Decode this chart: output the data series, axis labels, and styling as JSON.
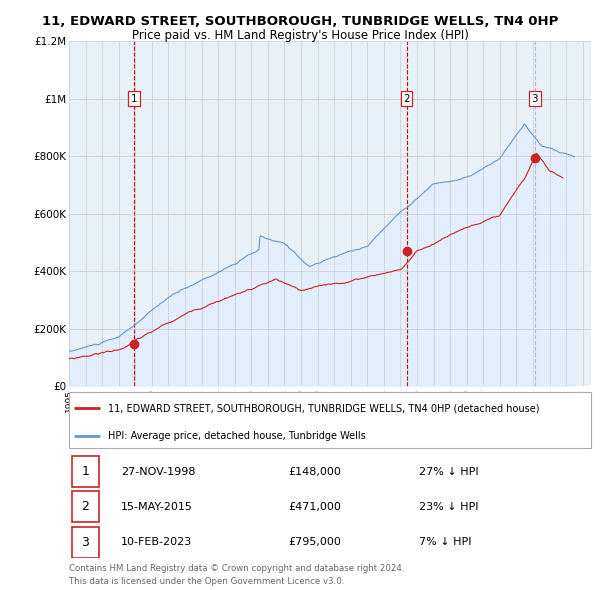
{
  "title": "11, EDWARD STREET, SOUTHBOROUGH, TUNBRIDGE WELLS, TN4 0HP",
  "subtitle": "Price paid vs. HM Land Registry's House Price Index (HPI)",
  "legend_label_red": "11, EDWARD STREET, SOUTHBOROUGH, TUNBRIDGE WELLS, TN4 0HP (detached house)",
  "legend_label_blue": "HPI: Average price, detached house, Tunbridge Wells",
  "footer1": "Contains HM Land Registry data © Crown copyright and database right 2024.",
  "footer2": "This data is licensed under the Open Government Licence v3.0.",
  "transactions": [
    {
      "num": 1,
      "date": "27-NOV-1998",
      "price": "£148,000",
      "hpi": "27% ↓ HPI"
    },
    {
      "num": 2,
      "date": "15-MAY-2015",
      "price": "£471,000",
      "hpi": "23% ↓ HPI"
    },
    {
      "num": 3,
      "date": "10-FEB-2023",
      "price": "£795,000",
      "hpi": "7% ↓ HPI"
    }
  ],
  "transaction_years": [
    1998.92,
    2015.37,
    2023.11
  ],
  "transaction_prices": [
    148000,
    471000,
    795000
  ],
  "vline_colors": [
    "#cc0000",
    "#cc0000",
    "#aabbdd"
  ],
  "ylim": [
    0,
    1200000
  ],
  "yticks": [
    0,
    200000,
    400000,
    600000,
    800000,
    1000000,
    1200000
  ],
  "ytick_labels": [
    "£0",
    "£200K",
    "£400K",
    "£600K",
    "£800K",
    "£1M",
    "£1.2M"
  ],
  "xmin": 1995.0,
  "xmax": 2026.5,
  "red_color": "#cc2222",
  "blue_color": "#6699cc",
  "blue_fill_color": "#ddeeff",
  "background_color": "#ffffff",
  "grid_color": "#cccccc",
  "chart_bg_color": "#e8f0f8"
}
